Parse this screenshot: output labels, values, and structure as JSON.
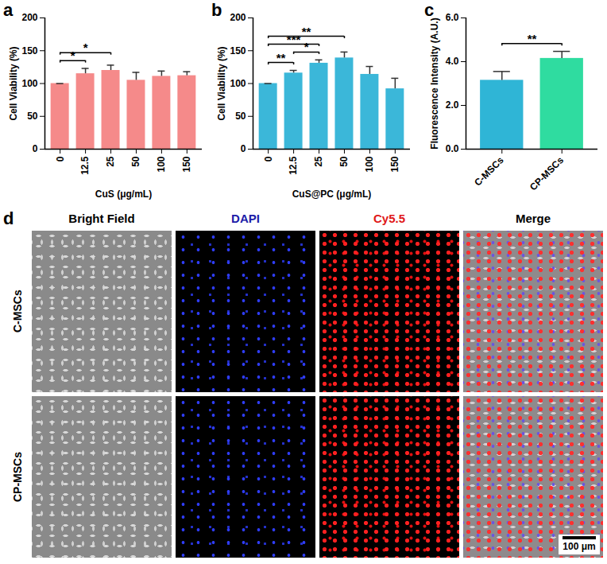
{
  "chart_data": [
    {
      "type": "bar",
      "title": "a",
      "categories": [
        "0",
        "12.5",
        "25",
        "50",
        "100",
        "150"
      ],
      "values": [
        100,
        115,
        120,
        105,
        111,
        112
      ],
      "errors": [
        0,
        8,
        8,
        12,
        8,
        6
      ],
      "color": "#f58a8a",
      "xlabel": "CuS (μg/mL)",
      "ylabel": "Cell Viability (%)",
      "ylim": [
        0,
        200
      ],
      "yticks": [
        0,
        50,
        100,
        150,
        200
      ],
      "significance": [
        {
          "between": [
            "0",
            "12.5"
          ],
          "label": "*"
        },
        {
          "between": [
            "0",
            "25"
          ],
          "label": "*"
        }
      ]
    },
    {
      "type": "bar",
      "title": "b",
      "categories": [
        "0",
        "12.5",
        "25",
        "50",
        "100",
        "150"
      ],
      "values": [
        100,
        116,
        131,
        139,
        114,
        92
      ],
      "errors": [
        0,
        4,
        5,
        9,
        12,
        16
      ],
      "color": "#3bb7d9",
      "xlabel": "CuS@PC (μg/mL)",
      "ylabel": "Cell Viability (%)",
      "ylim": [
        0,
        200
      ],
      "yticks": [
        0,
        50,
        100,
        150,
        200
      ],
      "significance": [
        {
          "between": [
            "0",
            "12.5"
          ],
          "label": "**"
        },
        {
          "between": [
            "12.5",
            "25"
          ],
          "label": "*"
        },
        {
          "between": [
            "0",
            "25"
          ],
          "label": "***"
        },
        {
          "between": [
            "0",
            "50"
          ],
          "label": "**"
        }
      ]
    },
    {
      "type": "bar",
      "title": "c",
      "categories": [
        "C-MSCs",
        "CP-MSCs"
      ],
      "values": [
        3.15,
        4.15
      ],
      "errors": [
        0.4,
        0.32
      ],
      "colors": [
        "#2fb5d6",
        "#2fdca0"
      ],
      "ylabel": "Fluorescence Intensity (A.U.)",
      "ylim": [
        0,
        6
      ],
      "yticks": [
        0,
        2,
        4,
        6
      ],
      "significance": [
        {
          "between": [
            "C-MSCs",
            "CP-MSCs"
          ],
          "label": "**"
        }
      ]
    }
  ],
  "image_panel": {
    "title": "d",
    "columns": [
      {
        "label": "Bright Field",
        "color": "#000000"
      },
      {
        "label": "DAPI",
        "color": "#1c1ca8"
      },
      {
        "label": "Cy5.5",
        "color": "#e01818"
      },
      {
        "label": "Merge",
        "color": "#000000"
      }
    ],
    "rows": [
      "C-MSCs",
      "CP-MSCs"
    ],
    "scale_bar": "100 μm"
  }
}
